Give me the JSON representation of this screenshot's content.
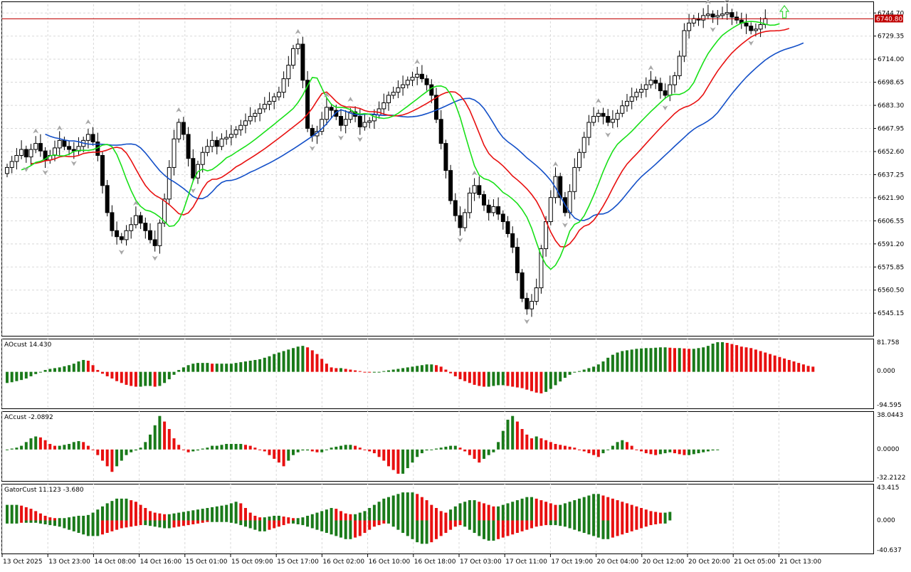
{
  "price_axis": {
    "labels": [
      "6744.70",
      "6729.35",
      "6714.00",
      "6698.65",
      "6683.30",
      "6667.95",
      "6652.60",
      "6637.25",
      "6621.90",
      "6606.55",
      "6591.20",
      "6575.85",
      "6560.50",
      "6545.15"
    ],
    "min": 6532.0,
    "max": 6750.5
  },
  "current_price": {
    "value": 6740.8,
    "label": "6740.80",
    "color": "#c00000"
  },
  "time_axis": {
    "labels": [
      "13 Oct 2025",
      "13 Oct 23:00",
      "14 Oct 08:00",
      "14 Oct 16:00",
      "15 Oct 01:00",
      "15 Oct 09:00",
      "15 Oct 17:00",
      "16 Oct 02:00",
      "16 Oct 10:00",
      "16 Oct 18:00",
      "17 Oct 03:00",
      "17 Oct 11:00",
      "17 Oct 19:00",
      "20 Oct 04:00",
      "20 Oct 12:00",
      "20 Oct 20:00",
      "21 Oct 05:00",
      "21 Oct 13:00"
    ]
  },
  "colors": {
    "bull_bar": "#1a7a1a",
    "bear_bar": "#e81010",
    "jaw": "#1450c8",
    "teeth": "#e81010",
    "lips": "#18e018",
    "fractal": "#a8a8a8",
    "signal_arrow": "#39d639"
  },
  "panels": {
    "ao": {
      "label": "AOcust 14.430",
      "max_label": "81.758",
      "zero_label": "0.000",
      "min_label": "-94.595",
      "max": 81.758,
      "min": -94.595
    },
    "ac": {
      "label": "ACcust -2.0892",
      "max_label": "38.0443",
      "zero_label": "0.0000",
      "min_label": "-32.2122",
      "max": 38.0443,
      "min": -32.2122
    },
    "gator": {
      "label": "GatorCust 11.123 -3.680",
      "max_label": "43.415",
      "zero_label": "0.000",
      "min_label": "-40.637",
      "max": 43.415,
      "min": -40.637
    }
  },
  "chart_data": [
    {
      "type": "candlestick",
      "title": "",
      "close_series": [
        6642,
        6646,
        6650,
        6654,
        6649,
        6654,
        6658,
        6653,
        6647,
        6650,
        6655,
        6660,
        6656,
        6654,
        6653,
        6656,
        6660,
        6664,
        6659,
        6650,
        6630,
        6612,
        6600,
        6596,
        6594,
        6600,
        6604,
        6610,
        6605,
        6600,
        6594,
        6590,
        6605,
        6621,
        6642,
        6661,
        6672,
        6664,
        6648,
        6635,
        6644,
        6652,
        6656,
        6660,
        6656,
        6661,
        6662,
        6664,
        6667,
        6670,
        6673,
        6676,
        6678,
        6681,
        6684,
        6686,
        6689,
        6692,
        6701,
        6710,
        6721,
        6724,
        6700,
        6668,
        6663,
        6666,
        6674,
        6682,
        6680,
        6676,
        6670,
        6674,
        6679,
        6676,
        6669,
        6672,
        6673,
        6677,
        6681,
        6685,
        6690,
        6692,
        6695,
        6697,
        6700,
        6702,
        6704,
        6701,
        6697,
        6690,
        6674,
        6658,
        6640,
        6620,
        6610,
        6602,
        6612,
        6625,
        6630,
        6624,
        6617,
        6612,
        6616,
        6611,
        6606,
        6598,
        6589,
        6572,
        6555,
        6548,
        6553,
        6562,
        6588,
        6606,
        6622,
        6636,
        6622,
        6612,
        6626,
        6642,
        6652,
        6662,
        6672,
        6676,
        6678,
        6676,
        6672,
        6674,
        6678,
        6683,
        6686,
        6689,
        6692,
        6694,
        6697,
        6700,
        6698,
        6693,
        6690,
        6697,
        6703,
        6716,
        6733,
        6738,
        6741,
        6740,
        6743,
        6744,
        6742,
        6743,
        6744,
        6745,
        6742,
        6740,
        6738,
        6736,
        6733,
        6734,
        6737,
        6741
      ],
      "lips_start": 6640,
      "teeth_start": 6645,
      "jaw_start": 6666,
      "signal_arrow_index": 163
    },
    {
      "type": "bar",
      "name": "AOcust",
      "values": [
        -30,
        -28,
        -25,
        -22,
        -18,
        -12,
        -6,
        0,
        5,
        8,
        10,
        12,
        15,
        18,
        22,
        28,
        32,
        30,
        18,
        5,
        -5,
        -12,
        -18,
        -25,
        -30,
        -35,
        -38,
        -40,
        -40,
        -38,
        -38,
        -40,
        -38,
        -30,
        -20,
        -8,
        5,
        12,
        18,
        22,
        24,
        24,
        24,
        22,
        22,
        22,
        22,
        22,
        24,
        26,
        28,
        30,
        32,
        34,
        38,
        42,
        48,
        52,
        56,
        60,
        64,
        68,
        70,
        66,
        58,
        48,
        35,
        22,
        12,
        10,
        10,
        8,
        6,
        4,
        2,
        0,
        -2,
        -2,
        0,
        2,
        4,
        6,
        8,
        10,
        12,
        14,
        16,
        18,
        20,
        20,
        18,
        14,
        6,
        -4,
        -12,
        -20,
        -25,
        -30,
        -35,
        -38,
        -40,
        -40,
        -38,
        -36,
        -36,
        -38,
        -40,
        -42,
        -44,
        -48,
        -52,
        -56,
        -58,
        -54,
        -46,
        -36,
        -26,
        -16,
        -8,
        -2,
        2,
        6,
        10,
        14,
        20,
        28,
        38,
        46,
        52,
        56,
        58,
        60,
        62,
        63,
        64,
        64,
        65,
        66,
        66,
        65,
        64,
        64,
        63,
        62,
        62,
        64,
        66,
        70,
        76,
        80,
        80,
        78,
        75,
        72,
        68,
        66,
        64,
        60,
        56,
        52,
        48,
        44,
        40,
        36,
        32,
        28,
        24,
        20,
        16,
        14
      ],
      "bull_color": "#1a7a1a",
      "bear_color": "#e81010"
    },
    {
      "type": "bar",
      "name": "ACcust",
      "values": [
        0,
        1,
        2,
        4,
        8,
        12,
        14,
        13,
        10,
        6,
        4,
        4,
        5,
        6,
        8,
        9,
        8,
        4,
        0,
        -6,
        -12,
        -18,
        -24,
        -18,
        -12,
        -6,
        -3,
        -1,
        2,
        8,
        16,
        26,
        36,
        30,
        22,
        12,
        5,
        0,
        -3,
        -2,
        -1,
        1,
        2,
        4,
        4,
        5,
        6,
        6,
        6,
        6,
        5,
        4,
        2,
        0,
        -2,
        -6,
        -10,
        -14,
        -18,
        -12,
        -6,
        -3,
        -1,
        -1,
        -2,
        -3,
        -3,
        0,
        2,
        3,
        4,
        5,
        5,
        4,
        2,
        0,
        -2,
        -4,
        -8,
        -12,
        -18,
        -22,
        -26,
        -26,
        -20,
        -14,
        -8,
        -4,
        -1,
        0,
        1,
        2,
        3,
        4,
        4,
        2,
        -2,
        -6,
        -10,
        -14,
        -10,
        -6,
        -3,
        8,
        20,
        32,
        36,
        30,
        22,
        16,
        12,
        14,
        12,
        10,
        8,
        6,
        5,
        4,
        3,
        2,
        0,
        -2,
        -4,
        -6,
        -8,
        -4,
        0,
        4,
        8,
        10,
        8,
        4,
        0,
        -2,
        -4,
        -5,
        -6,
        -5,
        -4,
        -3,
        -4,
        -5,
        -6,
        -6,
        -5,
        -4,
        -3,
        -2,
        -1,
        0
      ],
      "bull_color": "#1a7a1a",
      "bear_color": "#e81010"
    },
    {
      "type": "bar",
      "name": "GatorCust",
      "upper_values": [
        20,
        20,
        20,
        19,
        17,
        15,
        12,
        9,
        6,
        4,
        3,
        3,
        3,
        4,
        5,
        6,
        6,
        7,
        10,
        14,
        18,
        22,
        25,
        28,
        28,
        28,
        26,
        24,
        20,
        16,
        12,
        10,
        9,
        8,
        8,
        9,
        10,
        11,
        12,
        13,
        14,
        15,
        16,
        17,
        18,
        19,
        20,
        22,
        24,
        22,
        16,
        10,
        6,
        4,
        4,
        5,
        6,
        6,
        5,
        4,
        3,
        3,
        4,
        6,
        8,
        10,
        12,
        14,
        16,
        15,
        12,
        9,
        8,
        8,
        10,
        12,
        16,
        20,
        24,
        28,
        30,
        32,
        34,
        36,
        36,
        36,
        34,
        30,
        26,
        20,
        16,
        12,
        10,
        14,
        18,
        22,
        24,
        26,
        26,
        24,
        22,
        20,
        18,
        18,
        20,
        22,
        24,
        26,
        28,
        30,
        30,
        28,
        26,
        24,
        22,
        20,
        20,
        22,
        24,
        26,
        28,
        30,
        32,
        34,
        34,
        32,
        30,
        28,
        26,
        24,
        22,
        20,
        18,
        16,
        14,
        12,
        11,
        10,
        10,
        11
      ],
      "lower_values": [
        -4,
        -4,
        -4,
        -3,
        -3,
        -3,
        -3,
        -4,
        -5,
        -6,
        -7,
        -8,
        -10,
        -12,
        -14,
        -16,
        -18,
        -20,
        -20,
        -20,
        -18,
        -16,
        -14,
        -12,
        -10,
        -9,
        -8,
        -7,
        -6,
        -6,
        -7,
        -8,
        -9,
        -10,
        -10,
        -9,
        -8,
        -7,
        -6,
        -5,
        -4,
        -3,
        -2,
        -2,
        -2,
        -2,
        -2,
        -3,
        -4,
        -6,
        -8,
        -10,
        -12,
        -14,
        -14,
        -12,
        -10,
        -8,
        -6,
        -4,
        -4,
        -5,
        -6,
        -8,
        -10,
        -12,
        -14,
        -16,
        -18,
        -20,
        -22,
        -24,
        -24,
        -22,
        -20,
        -16,
        -12,
        -8,
        -6,
        -4,
        -4,
        -8,
        -12,
        -16,
        -20,
        -24,
        -28,
        -30,
        -30,
        -28,
        -24,
        -20,
        -16,
        -12,
        -8,
        -6,
        -8,
        -12,
        -16,
        -20,
        -24,
        -26,
        -26,
        -24,
        -22,
        -20,
        -18,
        -16,
        -14,
        -12,
        -10,
        -8,
        -7,
        -6,
        -6,
        -6,
        -7,
        -8,
        -10,
        -12,
        -14,
        -16,
        -18,
        -20,
        -22,
        -24,
        -24,
        -22,
        -20,
        -18,
        -16,
        -14,
        -12,
        -10,
        -8,
        -6,
        -5,
        -4,
        -4
      ],
      "bull_color": "#1a7a1a",
      "bear_color": "#e81010"
    }
  ]
}
